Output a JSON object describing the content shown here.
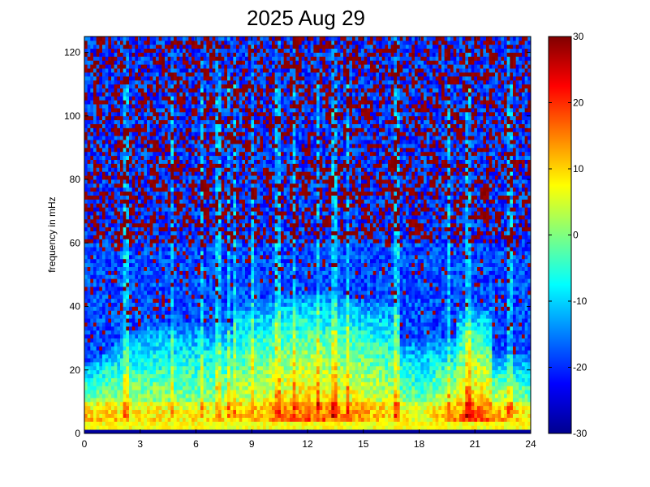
{
  "chart_data": {
    "type": "heatmap",
    "title": "2025 Aug 29",
    "xlabel": "",
    "ylabel": "frequency in mHz",
    "xlim": [
      0,
      24
    ],
    "ylim": [
      0,
      125
    ],
    "x_ticks": [
      "0",
      "3",
      "6",
      "9",
      "12",
      "15",
      "18",
      "21",
      "24"
    ],
    "y_ticks": [
      "0",
      "20",
      "40",
      "60",
      "80",
      "100",
      "120"
    ],
    "colorbar": {
      "colormap": "jet",
      "clim": [
        -30,
        30
      ],
      "ticks": [
        "-30",
        "-20",
        "-10",
        "0",
        "10",
        "20",
        "30"
      ]
    },
    "grid": false,
    "description_series": [
      {
        "hours": [
          0,
          3,
          6,
          9,
          12,
          15,
          18,
          21,
          24
        ],
        "low_freq_level_db": [
          8,
          3,
          2,
          6,
          12,
          8,
          0,
          14,
          4
        ]
      }
    ]
  }
}
